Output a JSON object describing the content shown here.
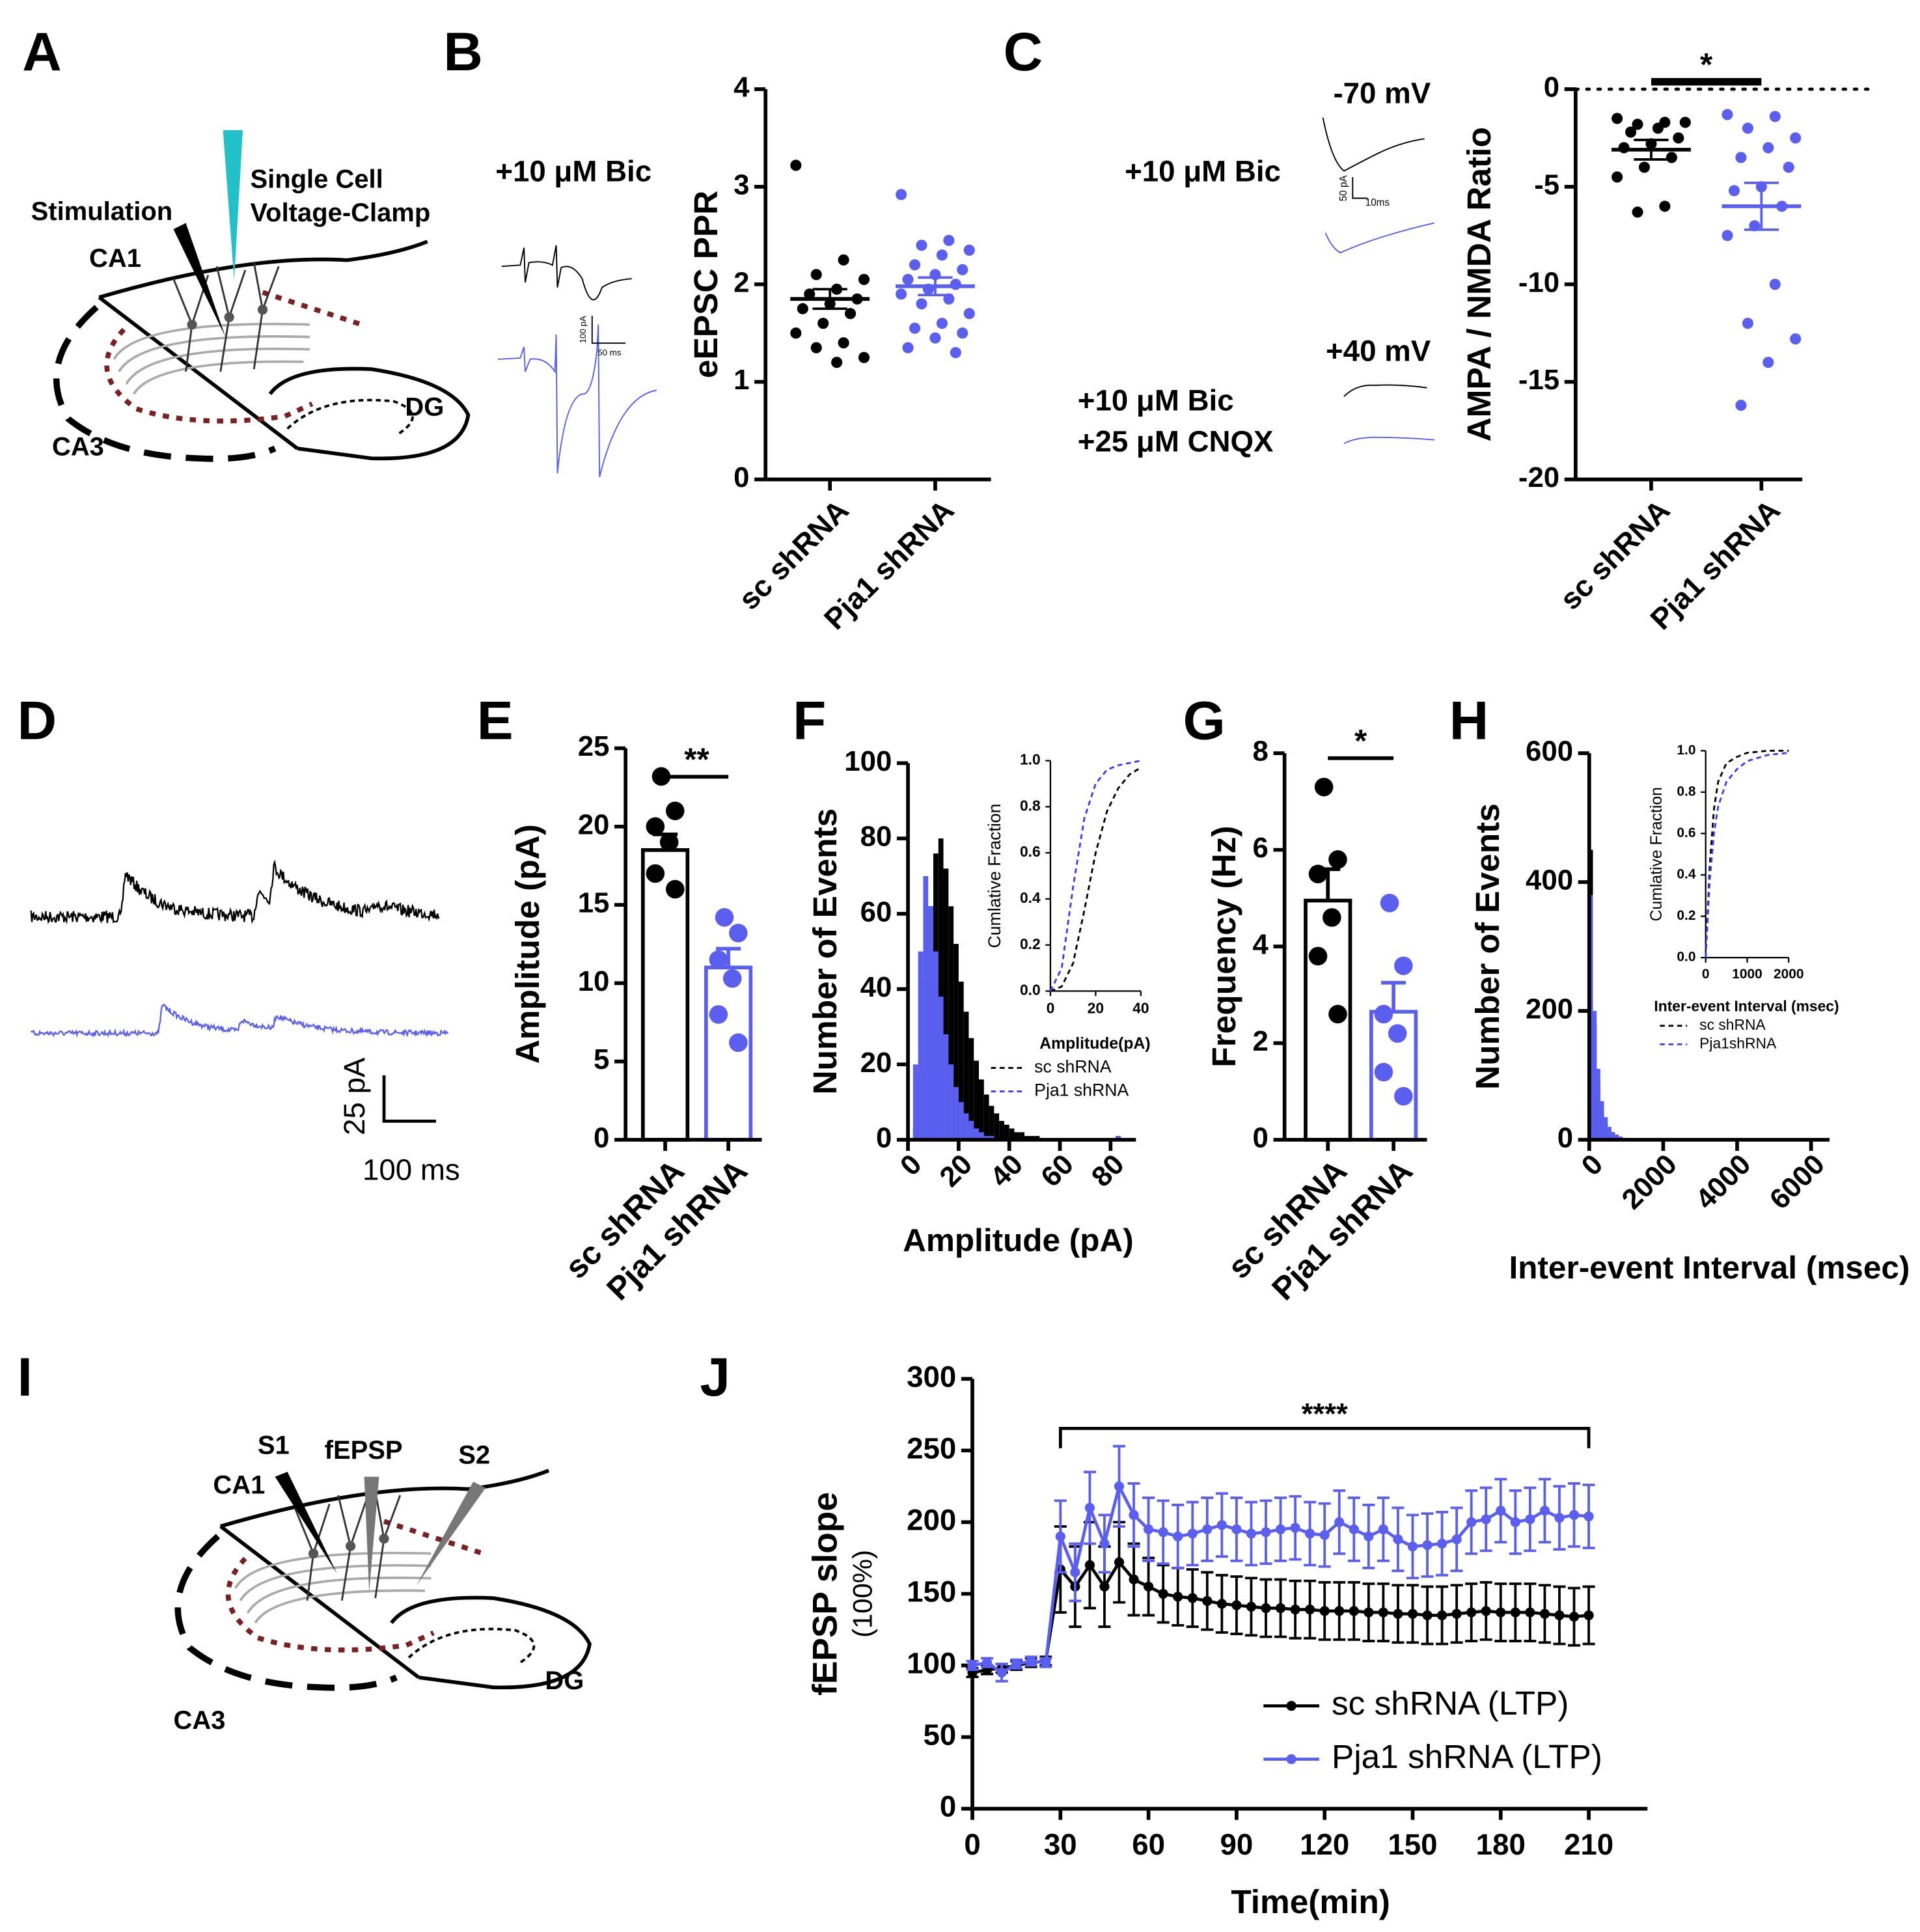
{
  "panel_labels": [
    "A",
    "B",
    "C",
    "D",
    "E",
    "F",
    "G",
    "H",
    "I",
    "J"
  ],
  "diagram_a": {
    "labels": [
      "Stimulation",
      "Single Cell",
      "Voltage-Clamp",
      "CA1",
      "CA3",
      "DG"
    ]
  },
  "traces_b": {
    "label": "+10 μM Bic",
    "scale": [
      "100 pA",
      "50 ms"
    ]
  },
  "traces_c": {
    "labels": [
      "-70 mV",
      "+10 μM Bic",
      "+40 mV",
      "+10 μM Bic",
      "+25 μM CNQX"
    ],
    "scale": [
      "50 pA",
      "10ms"
    ]
  },
  "traces_d": {
    "scale": [
      "25 pA",
      "100 ms"
    ]
  },
  "diagram_i": {
    "labels": [
      "S1",
      "fEPSP",
      "S2",
      "CA1",
      "CA3",
      "DG"
    ]
  },
  "chart_data": [
    {
      "type": "dot",
      "ylabel": "eEPSC PPR",
      "categories": [
        "sc shRNA",
        "Pja1 shRNA"
      ],
      "colors": [
        "#000000",
        "#5a5ff0"
      ],
      "values": [
        1.85,
        1.98
      ],
      "errors": [
        0.1,
        0.09
      ],
      "points": [
        [
          3.22,
          2.25,
          2.1,
          2.05,
          1.95,
          1.9,
          1.85,
          1.8,
          1.75,
          1.7,
          1.6,
          1.5,
          1.4,
          1.35,
          1.25,
          1.2
        ],
        [
          2.92,
          2.45,
          2.4,
          2.35,
          2.3,
          2.2,
          2.15,
          2.1,
          2.05,
          2.0,
          1.95,
          1.9,
          1.85,
          1.8,
          1.7,
          1.6,
          1.55,
          1.5,
          1.45,
          1.35,
          1.3
        ]
      ],
      "ylim": [
        0,
        4
      ],
      "yticks": [
        0,
        1,
        2,
        3,
        4
      ]
    },
    {
      "type": "dot",
      "ylabel": "AMPA / NMDA Ratio",
      "categories": [
        "sc shRNA",
        "Pja1 shRNA"
      ],
      "colors": [
        "#000000",
        "#5a5ff0"
      ],
      "values": [
        -3.1,
        -6.0
      ],
      "errors": [
        0.5,
        1.2
      ],
      "points": [
        [
          -1.5,
          -1.7,
          -1.8,
          -1.7,
          -2,
          -2.2,
          -2.5,
          -2.8,
          -3,
          -3.5,
          -4,
          -4.5,
          -6,
          -6.3
        ],
        [
          -1.3,
          -1.4,
          -2,
          -2.5,
          -3,
          -3.5,
          -4,
          -5,
          -5.2,
          -6,
          -7,
          -7.5,
          -10,
          -12,
          -12.8,
          -14,
          -16.2
        ]
      ],
      "ylim": [
        -20,
        0
      ],
      "yticks": [
        -20,
        -15,
        -10,
        -5,
        0
      ],
      "reference_line": 0,
      "annotation": "*"
    },
    {
      "type": "bar",
      "ylabel": "Amplitude (pA)",
      "categories": [
        "sc shRNA",
        "Pja1 shRNA"
      ],
      "colors": [
        "#000000",
        "#5a5ff0"
      ],
      "values": [
        18.5,
        11.0
      ],
      "errors": [
        1.0,
        1.2
      ],
      "points": [
        [
          23.2,
          21,
          20,
          19,
          17,
          16
        ],
        [
          14.2,
          13.2,
          11.5,
          10.3,
          8,
          6.2
        ]
      ],
      "ylim": [
        0,
        25
      ],
      "yticks": [
        0,
        5,
        10,
        15,
        20,
        25
      ],
      "annotation": "**"
    },
    {
      "type": "histogram",
      "xlabel": "Amplitude (pA)",
      "ylabel": "Number of Events",
      "bins": [
        0,
        2,
        4,
        6,
        8,
        10,
        12,
        14,
        16,
        18,
        20,
        22,
        24,
        26,
        28,
        30,
        32,
        34,
        36,
        38,
        40,
        42,
        44,
        46,
        48,
        50,
        52,
        54,
        56,
        58,
        60,
        62,
        64,
        66,
        68,
        70,
        72,
        74,
        76,
        78,
        80,
        82,
        84,
        86,
        88,
        90
      ],
      "series": [
        {
          "color": "#000000",
          "values": [
            0,
            3,
            18,
            42,
            62,
            76,
            80,
            72,
            62,
            52,
            42,
            34,
            27,
            21,
            16,
            12,
            9,
            7,
            5,
            4,
            3,
            2,
            2,
            1,
            1,
            1,
            0,
            0,
            0,
            0,
            0,
            0,
            0,
            0,
            0,
            0,
            0,
            0,
            0,
            0,
            0,
            1,
            0,
            0,
            0
          ]
        },
        {
          "color": "#5a5ff0",
          "values": [
            0,
            20,
            50,
            70,
            62,
            50,
            38,
            28,
            20,
            14,
            10,
            7,
            5,
            3,
            2,
            1,
            1,
            0,
            0,
            0,
            0,
            0,
            0,
            0,
            0,
            0,
            0,
            0,
            0,
            0,
            0,
            0,
            0,
            0,
            0,
            0,
            0,
            0,
            0,
            0,
            0,
            1,
            0,
            0,
            0
          ]
        }
      ],
      "xlim": [
        0,
        90
      ],
      "xticks": [
        0,
        20,
        40,
        60,
        80
      ],
      "ylim": [
        0,
        100
      ],
      "yticks": [
        0,
        20,
        40,
        60,
        80,
        100
      ]
    },
    {
      "type": "line",
      "xlabel": "Amplitude(pA)",
      "ylabel": "Cumlative Fraction",
      "dashed": true,
      "x": [
        0,
        5,
        10,
        15,
        20,
        25,
        30,
        35,
        40
      ],
      "series": [
        {
          "name": "sc shRNA",
          "color": "#000000",
          "values": [
            0,
            0.02,
            0.12,
            0.35,
            0.6,
            0.78,
            0.88,
            0.94,
            0.97
          ]
        },
        {
          "name": "Pja1 shRNA",
          "color": "#3c3cf0",
          "values": [
            0,
            0.1,
            0.45,
            0.75,
            0.9,
            0.96,
            0.98,
            0.99,
            1.0
          ]
        }
      ],
      "xlim": [
        0,
        40
      ],
      "xticks": [
        0,
        20,
        40
      ],
      "ylim": [
        0,
        1
      ],
      "yticks": [
        {
          "value": 0,
          "label": "0.0"
        },
        0.2,
        0.4,
        0.6,
        0.8,
        {
          "value": 1,
          "label": "1.0"
        }
      ]
    },
    {
      "type": "bar",
      "ylabel": "Frequency (Hz)",
      "categories": [
        "sc shRNA",
        "Pja1 shRNA"
      ],
      "colors": [
        "#000000",
        "#5a5ff0"
      ],
      "values": [
        4.95,
        2.65
      ],
      "errors": [
        0.65,
        0.6
      ],
      "points": [
        [
          7.3,
          5.8,
          5.5,
          4.6,
          3.8,
          2.6
        ],
        [
          4.9,
          3.6,
          2.6,
          2.2,
          1.4,
          0.9
        ]
      ],
      "ylim": [
        0,
        8
      ],
      "yticks": [
        0,
        2,
        4,
        6,
        8
      ],
      "annotation": "*"
    },
    {
      "type": "histogram",
      "xlabel": "Inter-event Interval (msec)",
      "ylabel": "Number of Events",
      "bins": [
        0,
        100,
        200,
        300,
        400,
        500,
        600,
        700,
        800,
        900,
        1000
      ],
      "series": [
        {
          "color": "#000000",
          "values": [
            450,
            180,
            90,
            45,
            25,
            12,
            8,
            5,
            3,
            2
          ]
        },
        {
          "color": "#5a5ff0",
          "values": [
            380,
            200,
            110,
            60,
            35,
            20,
            12,
            8,
            5,
            3
          ]
        }
      ],
      "xlim": [
        0,
        6500
      ],
      "xticks": [
        0,
        2000,
        4000,
        6000
      ],
      "ylim": [
        0,
        600
      ],
      "yticks": [
        0,
        200,
        400,
        600
      ]
    },
    {
      "type": "line",
      "xlabel": "Inter-event Interval (msec)",
      "ylabel": "Cumlative Fraction",
      "dashed": true,
      "x": [
        0,
        100,
        200,
        300,
        500,
        750,
        1000,
        1500,
        2000
      ],
      "series": [
        {
          "name": "sc shRNA",
          "color": "#000000",
          "values": [
            0,
            0.45,
            0.72,
            0.85,
            0.94,
            0.97,
            0.99,
            1.0,
            1.0
          ]
        },
        {
          "name": "Pja1shRNA",
          "color": "#3c3cf0",
          "values": [
            0,
            0.38,
            0.6,
            0.73,
            0.85,
            0.91,
            0.95,
            0.98,
            0.99
          ]
        }
      ],
      "xlim": [
        0,
        2000
      ],
      "xticks": [
        0,
        1000,
        2000
      ],
      "ylim": [
        0,
        1
      ],
      "yticks": [
        {
          "value": 0,
          "label": "0.0"
        },
        0.2,
        0.4,
        0.6,
        0.8,
        {
          "value": 1,
          "label": "1.0"
        }
      ]
    },
    {
      "type": "line",
      "xlabel": "Time(min)",
      "ylabel": "fEPSP slope",
      "ylabel_unit": "(100%)",
      "markers": true,
      "x": [
        0,
        5,
        10,
        15,
        20,
        25,
        30,
        35,
        40,
        45,
        50,
        55,
        60,
        65,
        70,
        75,
        80,
        85,
        90,
        95,
        100,
        105,
        110,
        115,
        120,
        125,
        130,
        135,
        140,
        145,
        150,
        155,
        160,
        165,
        170,
        175,
        180,
        185,
        190,
        195,
        200,
        205,
        210
      ],
      "series": [
        {
          "name": "sc shRNA (LTP)",
          "color": "#000000",
          "values": [
            95,
            97,
            98,
            100,
            102,
            103,
            167,
            155,
            170,
            155,
            172,
            160,
            155,
            150,
            148,
            147,
            145,
            143,
            142,
            141,
            140,
            140,
            139,
            139,
            138,
            138,
            138,
            137,
            137,
            136,
            136,
            135,
            135,
            136,
            137,
            138,
            137,
            137,
            137,
            136,
            135,
            134,
            135
          ],
          "errors": [
            3,
            3,
            3,
            3,
            3,
            3,
            30,
            28,
            30,
            28,
            28,
            25,
            20,
            20,
            20,
            20,
            20,
            20,
            20,
            20,
            20,
            20,
            20,
            20,
            20,
            20,
            20,
            20,
            20,
            20,
            20,
            20,
            20,
            20,
            20,
            20,
            20,
            20,
            20,
            20,
            20,
            20,
            20
          ]
        },
        {
          "name": "Pja1 shRNA (LTP)",
          "color": "#5a5ff0",
          "values": [
            100,
            102,
            95,
            101,
            103,
            102,
            190,
            165,
            210,
            185,
            225,
            205,
            195,
            193,
            190,
            192,
            195,
            198,
            195,
            192,
            193,
            195,
            196,
            192,
            191,
            200,
            195,
            190,
            195,
            188,
            183,
            184,
            185,
            188,
            200,
            202,
            208,
            200,
            202,
            208,
            203,
            205,
            204
          ],
          "errors": [
            3,
            3,
            6,
            3,
            3,
            3,
            25,
            20,
            25,
            20,
            28,
            22,
            22,
            22,
            22,
            22,
            22,
            22,
            22,
            22,
            22,
            22,
            22,
            22,
            22,
            22,
            22,
            22,
            22,
            22,
            22,
            22,
            22,
            22,
            22,
            22,
            22,
            22,
            22,
            22,
            22,
            22,
            22
          ]
        }
      ],
      "xlim": [
        0,
        230
      ],
      "xticks": [
        0,
        30,
        60,
        90,
        120,
        150,
        180,
        210
      ],
      "ylim": [
        0,
        300
      ],
      "yticks": [
        0,
        50,
        100,
        150,
        200,
        250,
        300
      ],
      "annotation": "****",
      "annotation_x": [
        30,
        210
      ]
    }
  ]
}
